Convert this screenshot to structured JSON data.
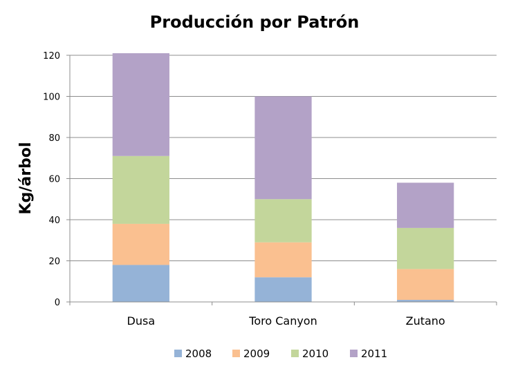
{
  "chart_data": {
    "type": "bar",
    "stacked": true,
    "title": "Producción por Patrón",
    "ylabel": "Kg/árbol",
    "xlabel": "",
    "ylim": [
      0,
      120
    ],
    "yticks": [
      0,
      20,
      40,
      60,
      80,
      100,
      120
    ],
    "grid": true,
    "legend_position": "bottom",
    "categories": [
      "Dusa",
      "Toro Canyon",
      "Zutano"
    ],
    "series": [
      {
        "name": "2008",
        "color": "#95b3d7",
        "values": [
          18,
          12,
          1
        ]
      },
      {
        "name": "2009",
        "color": "#fac090",
        "values": [
          20,
          17,
          15
        ]
      },
      {
        "name": "2010",
        "color": "#c3d69b",
        "values": [
          33,
          21,
          20
        ]
      },
      {
        "name": "2011",
        "color": "#b3a2c7",
        "values": [
          50,
          50,
          22
        ]
      }
    ]
  }
}
